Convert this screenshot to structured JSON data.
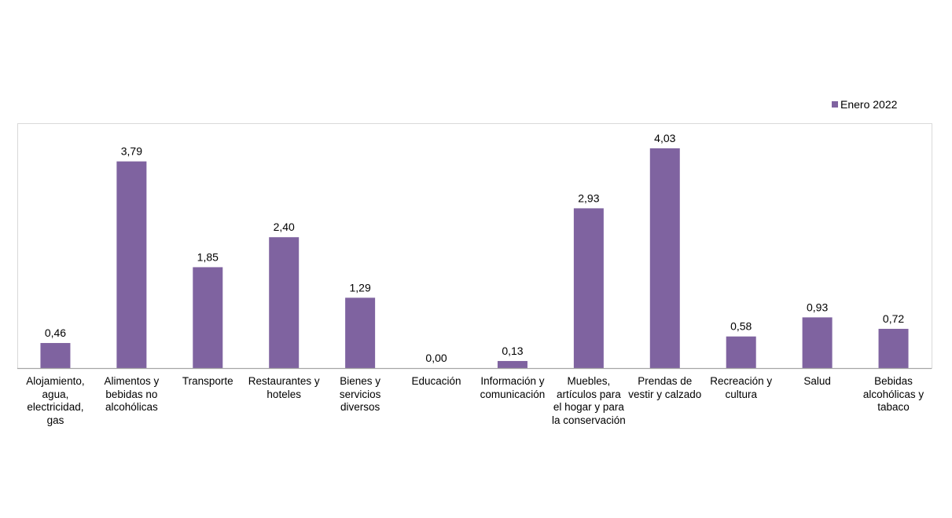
{
  "chart_data": {
    "type": "bar",
    "categories": [
      "Alojamiento, agua, electricidad, gas",
      "Alimentos y bebidas no alcohólicas",
      "Transporte",
      "Restaurantes y hoteles",
      "Bienes y servicios diversos",
      "Educación",
      "Información y comunicación",
      "Muebles, artículos para el hogar y para la conservación",
      "Prendas de vestir y calzado",
      "Recreación y cultura",
      "Salud",
      "Bebidas alcohólicas y tabaco"
    ],
    "series": [
      {
        "name": "Enero 2022",
        "color": "#7F63A0",
        "values": [
          0.46,
          3.79,
          1.85,
          2.4,
          1.29,
          0.0,
          0.13,
          2.93,
          4.03,
          0.58,
          0.93,
          0.72
        ],
        "labels": [
          "0,46",
          "3,79",
          "1,85",
          "2,40",
          "1,29",
          "0,00",
          "0,13",
          "2,93",
          "4,03",
          "0,58",
          "0,93",
          "0,72"
        ]
      }
    ],
    "title": "",
    "xlabel": "",
    "ylabel": "",
    "ylim": [
      0,
      4.49
    ],
    "grid": false,
    "legend_position": "top-right"
  }
}
